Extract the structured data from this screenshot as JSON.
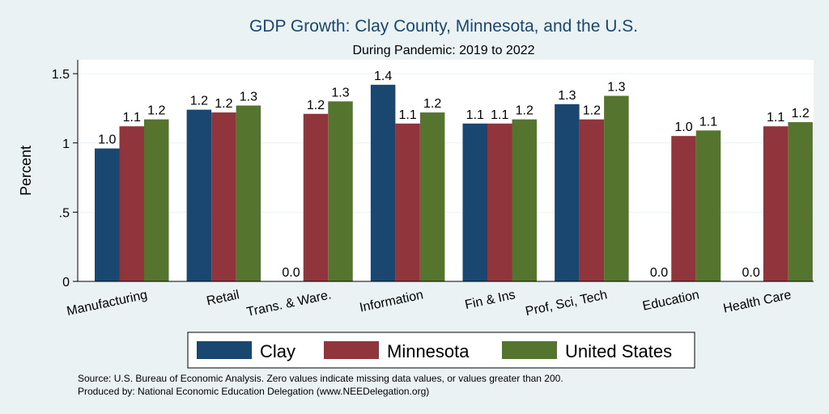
{
  "chart_data": {
    "type": "bar",
    "title": "GDP Growth: Clay County, Minnesota, and the U.S.",
    "subtitle": "During Pandemic: 2019 to 2022",
    "ylabel": "Percent",
    "ylim": [
      0,
      1.6
    ],
    "yticks": [
      0,
      0.5,
      1,
      1.5
    ],
    "ytick_labels": [
      "0",
      ".5",
      "1",
      "1.5"
    ],
    "grid": true,
    "legend_position": "bottom",
    "categories": [
      "Manufacturing",
      "Retail",
      "Trans. & Ware.",
      "Information",
      "Fin & Ins",
      "Prof, Sci, Tech",
      "Education",
      "Health Care"
    ],
    "series": [
      {
        "name": "Clay",
        "color": "#1a476f",
        "values": [
          0.96,
          1.24,
          0,
          1.42,
          1.14,
          1.28,
          0,
          0
        ],
        "labels": [
          "1.0",
          "1.2",
          "0.0",
          "1.4",
          "1.1",
          "1.3",
          "0.0",
          "0.0"
        ]
      },
      {
        "name": "Minnesota",
        "color": "#90353b",
        "values": [
          1.12,
          1.22,
          1.21,
          1.14,
          1.14,
          1.17,
          1.05,
          1.12
        ],
        "labels": [
          "1.1",
          "1.2",
          "1.2",
          "1.1",
          "1.1",
          "1.2",
          "1.0",
          "1.1"
        ]
      },
      {
        "name": "United States",
        "color": "#55752f",
        "values": [
          1.17,
          1.27,
          1.3,
          1.22,
          1.17,
          1.34,
          1.09,
          1.15
        ],
        "labels": [
          "1.2",
          "1.3",
          "1.3",
          "1.2",
          "1.2",
          "1.3",
          "1.1",
          "1.2"
        ]
      }
    ],
    "notes": [
      "Source: U.S. Bureau of Economic Analysis. Zero values indicate missing data values, or values greater than 200.",
      "Produced by: National Economic Education Delegation (www.NEEDelegation.org)"
    ]
  }
}
